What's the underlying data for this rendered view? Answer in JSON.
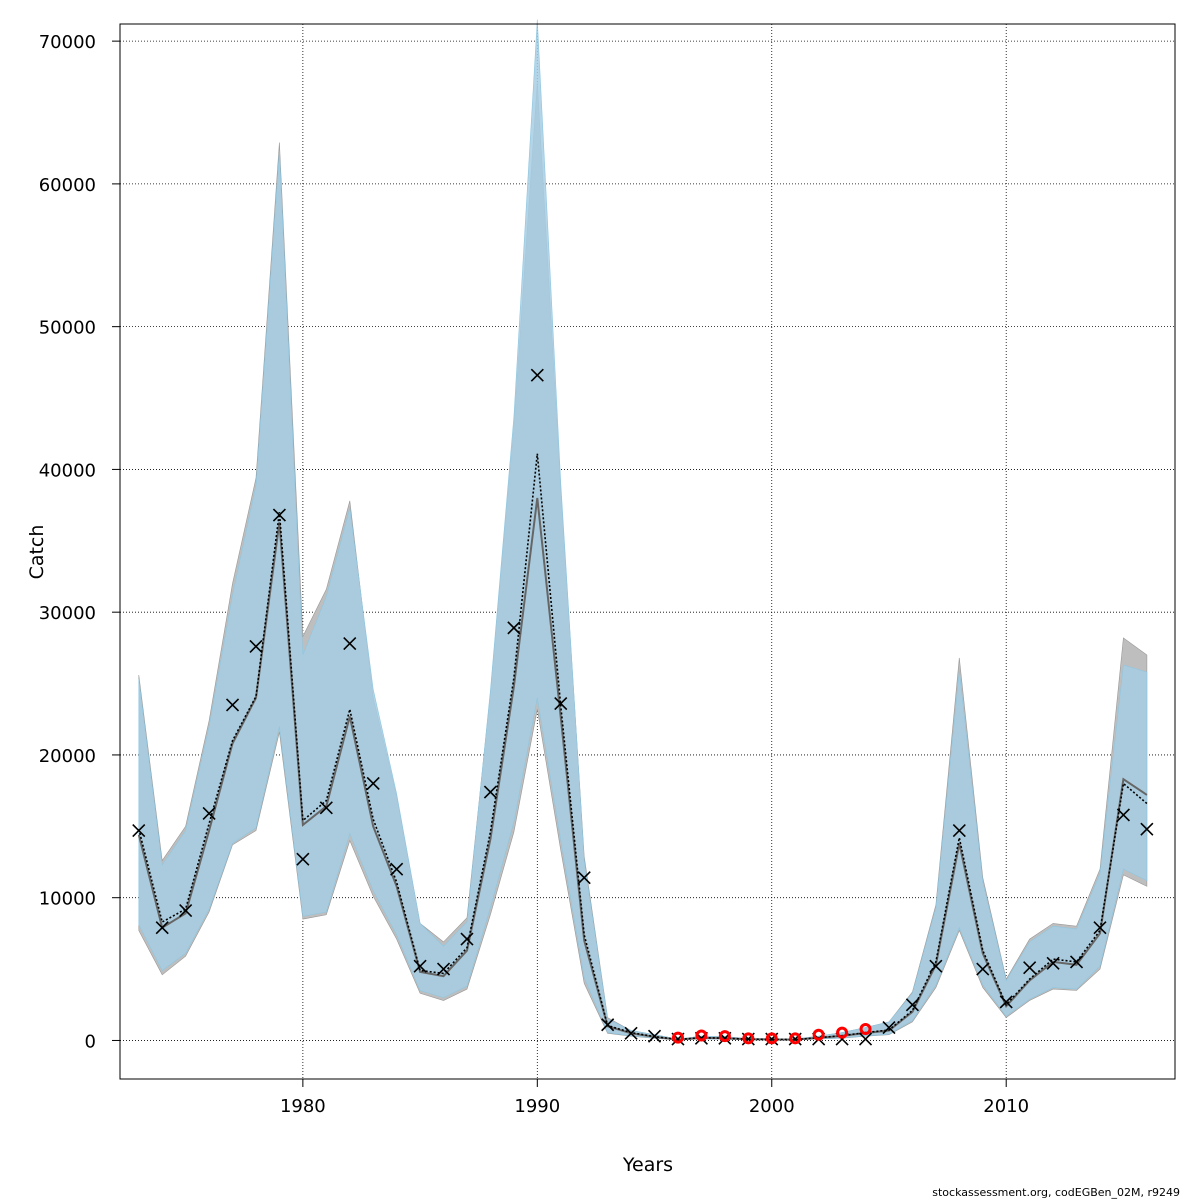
{
  "chart_data": {
    "type": "line",
    "title": "",
    "xlabel": "Years",
    "ylabel": "Catch",
    "footer": "stockassessment.org, codEGBen_02M, r9249",
    "xlim": [
      1972.2,
      2017.2
    ],
    "ylim": [
      -2700,
      71200
    ],
    "x_ticks": [
      1980,
      1990,
      2000,
      2010
    ],
    "y_ticks": [
      0,
      10000,
      20000,
      30000,
      40000,
      50000,
      60000,
      70000
    ],
    "grid": true,
    "colors": {
      "grey_band": "#bebebe",
      "grey_line": "#666666",
      "blue_band": "#a6cee3",
      "band_overlap": "#a2c0d2",
      "observed_marker": "#000000",
      "highlight_marker": "#ff0000"
    },
    "years": [
      1973,
      1974,
      1975,
      1976,
      1977,
      1978,
      1979,
      1980,
      1981,
      1982,
      1983,
      1984,
      1985,
      1986,
      1987,
      1988,
      1989,
      1990,
      1991,
      1992,
      1993,
      1994,
      1995,
      1996,
      1997,
      1998,
      1999,
      2000,
      2001,
      2002,
      2003,
      2004,
      2005,
      2006,
      2007,
      2008,
      2009,
      2010,
      2011,
      2012,
      2013,
      2014,
      2015,
      2016
    ],
    "series": [
      {
        "name": "grey band",
        "lower": [
          7700,
          4600,
          5900,
          9000,
          13700,
          14700,
          21600,
          8500,
          8800,
          14000,
          10100,
          7100,
          3300,
          2800,
          3600,
          8800,
          14600,
          23200,
          13300,
          4000,
          500,
          300,
          150,
          40,
          100,
          80,
          40,
          40,
          40,
          100,
          160,
          300,
          400,
          1300,
          3700,
          7700,
          3700,
          1600,
          2800,
          3600,
          3500,
          5000,
          11600,
          10800
        ],
        "middle": [
          14400,
          7900,
          8900,
          14700,
          20800,
          24000,
          36300,
          15100,
          16400,
          22700,
          15000,
          10800,
          4800,
          4500,
          6300,
          14100,
          24800,
          38000,
          22600,
          7000,
          1000,
          500,
          250,
          60,
          180,
          150,
          80,
          70,
          60,
          180,
          320,
          520,
          700,
          2000,
          5300,
          13800,
          6100,
          2400,
          4200,
          5500,
          5300,
          7500,
          18300,
          17200
        ],
        "upper": [
          25600,
          12600,
          15000,
          22400,
          32000,
          39400,
          62900,
          28300,
          31600,
          37800,
          24000,
          17100,
          8200,
          6900,
          8600,
          24300,
          43000,
          67100,
          38500,
          12900,
          1600,
          700,
          400,
          100,
          300,
          260,
          140,
          120,
          100,
          300,
          560,
          900,
          1300,
          3400,
          9500,
          26800,
          11400,
          4300,
          7100,
          8200,
          8000,
          12000,
          28200,
          27000
        ]
      },
      {
        "name": "blue band",
        "lower": [
          8100,
          4900,
          6100,
          9200,
          13800,
          14900,
          22000,
          8700,
          9000,
          14500,
          10500,
          7400,
          3500,
          3000,
          3800,
          9300,
          15300,
          24000,
          14000,
          4400,
          550,
          320,
          170,
          50,
          110,
          90,
          50,
          50,
          50,
          110,
          170,
          320,
          430,
          1400,
          3900,
          7900,
          3900,
          1700,
          2900,
          3700,
          3600,
          5200,
          12000,
          11200
        ],
        "middle": [
          14800,
          8300,
          9200,
          15200,
          21000,
          24100,
          37000,
          15400,
          16800,
          23200,
          15500,
          11100,
          4900,
          4700,
          6500,
          14600,
          25400,
          41100,
          23400,
          7400,
          1050,
          550,
          270,
          70,
          190,
          160,
          90,
          80,
          70,
          190,
          340,
          550,
          730,
          2100,
          5500,
          14200,
          6300,
          2500,
          4300,
          5700,
          5500,
          7700,
          18000,
          16600
        ],
        "upper": [
          25300,
          12300,
          14700,
          22000,
          31200,
          38900,
          62300,
          27000,
          31100,
          37300,
          24600,
          17300,
          8200,
          6600,
          8300,
          24500,
          43700,
          71500,
          39000,
          12600,
          1500,
          700,
          400,
          90,
          300,
          260,
          140,
          120,
          100,
          300,
          560,
          900,
          1300,
          3300,
          9300,
          25900,
          11100,
          4200,
          6900,
          8000,
          7800,
          11700,
          26300,
          25800
        ]
      }
    ],
    "observed": [
      14700,
      7900,
      9100,
      15900,
      23500,
      27600,
      36800,
      12700,
      16300,
      27800,
      18000,
      12000,
      5200,
      5000,
      7100,
      17400,
      28900,
      46600,
      23600,
      11400,
      1100,
      500,
      300,
      100,
      150,
      150,
      100,
      100,
      100,
      100,
      100,
      100,
      900,
      2500,
      5200,
      14700,
      5000,
      2700,
      5100,
      5400,
      5500,
      7900,
      15800,
      14800
    ],
    "highlighted_points": [
      {
        "x": 1996,
        "y": 200
      },
      {
        "x": 1997,
        "y": 350
      },
      {
        "x": 1998,
        "y": 300
      },
      {
        "x": 1999,
        "y": 150
      },
      {
        "x": 2000,
        "y": 150
      },
      {
        "x": 2001,
        "y": 150
      },
      {
        "x": 2002,
        "y": 400
      },
      {
        "x": 2003,
        "y": 550
      },
      {
        "x": 2004,
        "y": 800
      }
    ]
  }
}
